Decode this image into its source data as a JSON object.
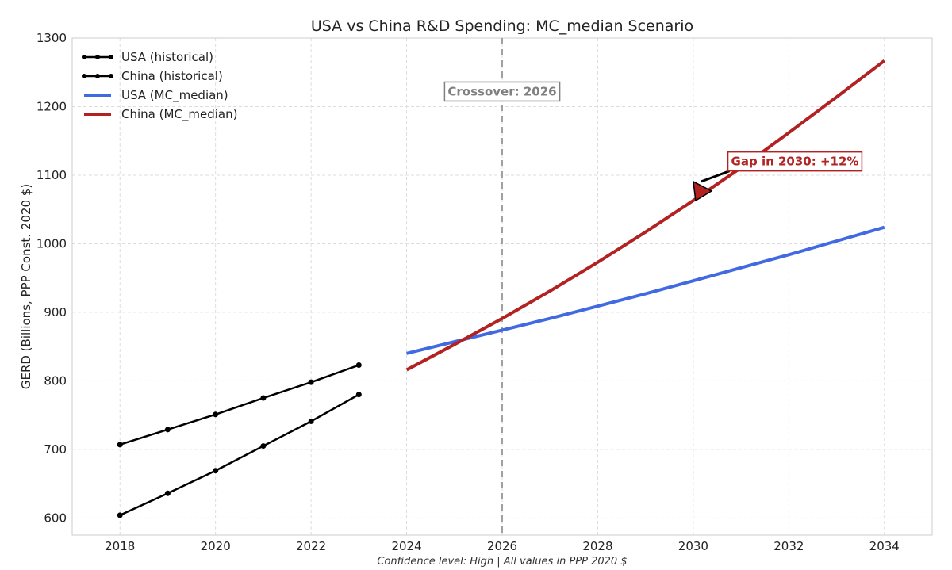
{
  "chart_data": {
    "type": "line",
    "title": "USA vs China R&D Spending: MC_median Scenario",
    "xlabel": "",
    "ylabel": "GERD (Billions, PPP Const. 2020 $)",
    "caption": "Confidence level: High | All values in PPP 2020 $",
    "xlim": [
      2017,
      2035
    ],
    "ylim": [
      575,
      1300
    ],
    "xticks": [
      2018,
      2020,
      2022,
      2024,
      2026,
      2028,
      2030,
      2032,
      2034
    ],
    "yticks": [
      600,
      700,
      800,
      900,
      1000,
      1100,
      1200,
      1300
    ],
    "grid": true,
    "legend_position": "top-left",
    "series": [
      {
        "name": "USA (historical)",
        "color": "#000000",
        "markers": true,
        "style": "solid",
        "x": [
          2018,
          2019,
          2020,
          2021,
          2022,
          2023
        ],
        "y": [
          707,
          729,
          751,
          775,
          798,
          823
        ]
      },
      {
        "name": "China (historical)",
        "color": "#000000",
        "markers": true,
        "style": "solid",
        "x": [
          2018,
          2019,
          2020,
          2021,
          2022,
          2023
        ],
        "y": [
          604,
          636,
          669,
          705,
          741,
          780
        ]
      },
      {
        "name": "USA (MC_median)",
        "color": "#4169e1",
        "markers": false,
        "style": "solid",
        "x": [
          2024,
          2025,
          2026,
          2027,
          2028,
          2029,
          2030,
          2031,
          2032,
          2033,
          2034
        ],
        "y": [
          840,
          857,
          874,
          891,
          909,
          927,
          946,
          965,
          984,
          1004,
          1024
        ]
      },
      {
        "name": "China (MC_median)",
        "color": "#b22222",
        "markers": false,
        "style": "solid",
        "x": [
          2024,
          2025,
          2026,
          2027,
          2028,
          2029,
          2030,
          2031,
          2032,
          2033,
          2034
        ],
        "y": [
          816,
          853,
          891,
          931,
          973,
          1017,
          1063,
          1111,
          1162,
          1214,
          1267
        ]
      }
    ],
    "annotations": [
      {
        "text": "Crossover: 2026",
        "color": "#808080",
        "vline_x": 2026,
        "label_at": [
          2026,
          1222
        ]
      },
      {
        "text": "Gap in 2030: +12%",
        "color": "#b22222",
        "point_at": [
          2030,
          1063
        ],
        "label_at": [
          2030.5,
          1120
        ]
      }
    ]
  }
}
